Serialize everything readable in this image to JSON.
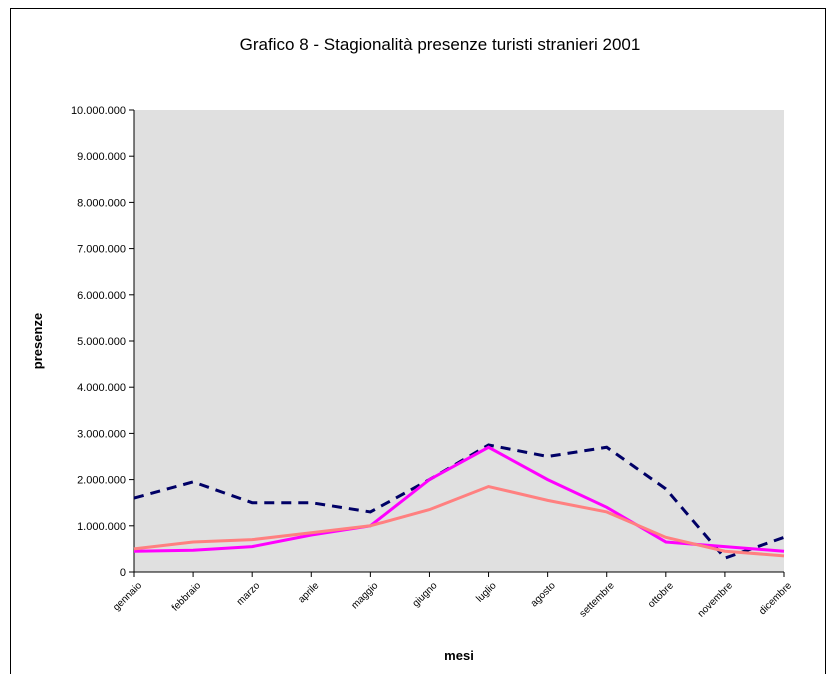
{
  "chart_data": {
    "type": "line",
    "title": "Grafico 8 - Stagionalità presenze turisti stranieri  2001",
    "y_label": "presenze",
    "x_label": "mesi",
    "categories": [
      "gennaio",
      "febbraio",
      "marzo",
      "aprile",
      "maggio",
      "giugno",
      "luglio",
      "agosto",
      "settembre",
      "ottobre",
      "novembre",
      "dicembre"
    ],
    "series": [
      {
        "color": "#000066",
        "dashed": true,
        "values": [
          1600000,
          1950000,
          1500000,
          1500000,
          1300000,
          2000000,
          2750000,
          2500000,
          2700000,
          1800000,
          300000,
          750000
        ]
      },
      {
        "color": "#ff00ff",
        "dashed": false,
        "values": [
          450000,
          470000,
          550000,
          800000,
          1000000,
          2000000,
          2700000,
          2000000,
          1400000,
          650000,
          550000,
          450000
        ]
      },
      {
        "color": "#ff8080",
        "dashed": false,
        "values": [
          500000,
          650000,
          700000,
          850000,
          1000000,
          1350000,
          1850000,
          1550000,
          1300000,
          750000,
          450000,
          350000
        ]
      }
    ],
    "ylim": [
      0,
      10000000
    ],
    "yticks": [
      0,
      {
        "value": 1000000,
        "label": "1.000.000"
      },
      {
        "value": 2000000,
        "label": "2.000.000"
      },
      {
        "value": 3000000,
        "label": "3.000.000"
      },
      {
        "value": 4000000,
        "label": "4.000.000"
      },
      {
        "value": 5000000,
        "label": "5.000.000"
      },
      {
        "value": 6000000,
        "label": "6.000.000"
      },
      {
        "value": 7000000,
        "label": "7.000.000"
      },
      {
        "value": 8000000,
        "label": "8.000.000"
      },
      {
        "value": 9000000,
        "label": "9.000.000"
      },
      {
        "value": 10000000,
        "label": "10.000.000"
      }
    ],
    "plot_background": "#e0e0e0"
  }
}
